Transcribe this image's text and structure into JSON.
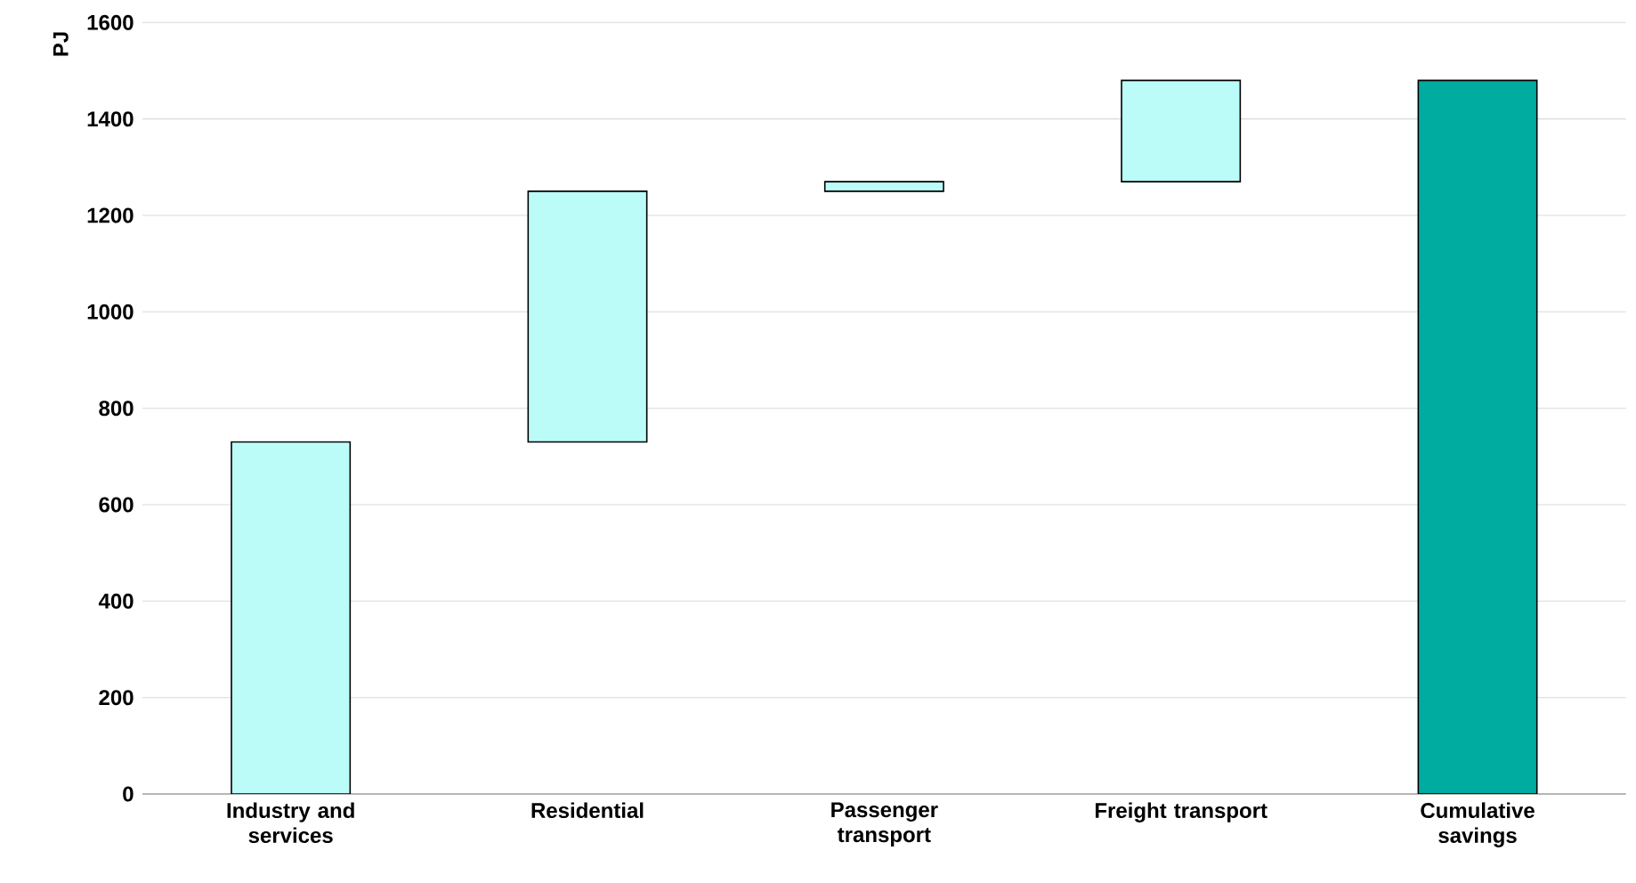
{
  "chart_data": {
    "type": "bar",
    "ylabel": "PJ",
    "categories": [
      "Industry and services",
      "Residential",
      "Passenger transport",
      "Freight transport",
      "Cumulative savings"
    ],
    "values": [
      730,
      520,
      20,
      210,
      1480
    ],
    "base": [
      0,
      730,
      1250,
      1270,
      0
    ],
    "colors": [
      "#bbfcf9",
      "#bbfcf9",
      "#bbfcf9",
      "#bbfcf9",
      "#00ab9f"
    ],
    "ylim": [
      0,
      1600
    ],
    "yticks": [
      0,
      200,
      400,
      600,
      800,
      1000,
      1200,
      1400,
      1600
    ],
    "grid": "y"
  }
}
